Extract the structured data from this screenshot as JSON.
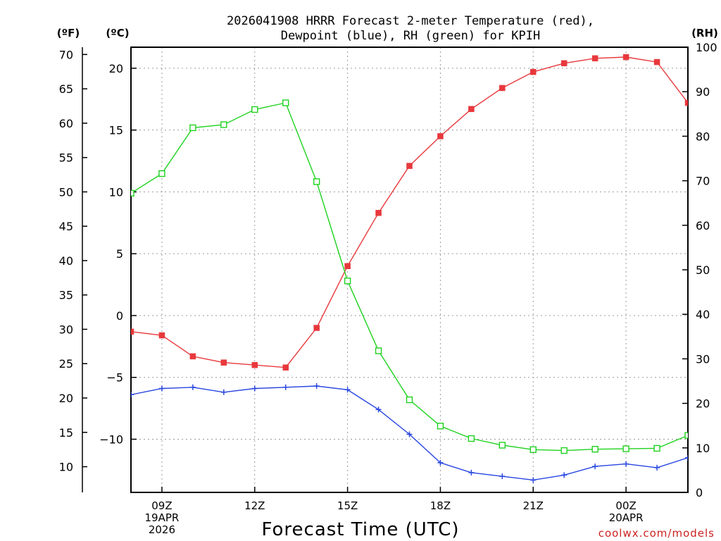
{
  "chart_data": {
    "type": "line",
    "title_lines": [
      "2026041908 HRRR Forecast 2-meter Temperature (red),",
      "Dewpoint (blue), RH (green) for KPIH"
    ],
    "units": {
      "left_outer": "(ºF)",
      "left_inner": "(ºC)",
      "right": "(RH)"
    },
    "xlabel": "Forecast Time (UTC)",
    "credit": "coolwx.com/models",
    "colors": {
      "temperature": "#e8383c",
      "dewpoint": "#2846e0",
      "rh": "#1fd21f",
      "grid": "#9a9a9a",
      "axis": "#000000",
      "credit": "#cc2222"
    },
    "x_hours": [
      8,
      9,
      10,
      11,
      12,
      13,
      14,
      15,
      16,
      17,
      18,
      19,
      20,
      21,
      22,
      23,
      24,
      25,
      26
    ],
    "xlim": [
      8,
      26
    ],
    "x_ticks": [
      {
        "hour": 9,
        "lines": [
          "09Z",
          "19APR",
          "2026"
        ]
      },
      {
        "hour": 12,
        "lines": [
          "12Z"
        ]
      },
      {
        "hour": 15,
        "lines": [
          "15Z"
        ]
      },
      {
        "hour": 18,
        "lines": [
          "18Z"
        ]
      },
      {
        "hour": 21,
        "lines": [
          "21Z"
        ]
      },
      {
        "hour": 24,
        "lines": [
          "00Z",
          "20APR"
        ]
      }
    ],
    "celsius_axis": {
      "range": [
        -14.3,
        21.7
      ],
      "ticks": [
        20,
        15,
        10,
        5,
        0,
        -5,
        -10
      ],
      "tick_labels": [
        "20",
        "15",
        "10",
        "5",
        "0",
        "−5",
        "−10"
      ]
    },
    "fahrenheit_axis": {
      "ticks": [
        70,
        65,
        60,
        55,
        50,
        45,
        40,
        35,
        30,
        25,
        20,
        15,
        10
      ],
      "tick_labels": [
        "70",
        "65",
        "60",
        "55",
        "50",
        "45",
        "40",
        "35",
        "30",
        "25",
        "20",
        "15",
        "10"
      ]
    },
    "rh_axis": {
      "range": [
        0,
        100
      ],
      "ticks": [
        100,
        90,
        80,
        70,
        60,
        50,
        40,
        30,
        20,
        10,
        0
      ],
      "tick_labels": [
        "100",
        "90",
        "80",
        "70",
        "60",
        "50",
        "40",
        "30",
        "20",
        "10",
        "0"
      ]
    },
    "series": [
      {
        "name": "Temperature",
        "unit": "C",
        "marker": "filled-square",
        "color_key": "temperature",
        "values": [
          -1.3,
          -1.6,
          -3.3,
          -3.8,
          -4.0,
          -4.2,
          -1.0,
          4.0,
          8.3,
          12.1,
          14.5,
          16.7,
          18.4,
          19.7,
          20.4,
          20.8,
          20.9,
          20.5,
          17.2
        ]
      },
      {
        "name": "Dewpoint",
        "unit": "C",
        "marker": "plus",
        "color_key": "dewpoint",
        "values": [
          -6.4,
          -5.9,
          -5.8,
          -6.2,
          -5.9,
          -5.8,
          -5.7,
          -6.0,
          -7.6,
          -9.6,
          -11.9,
          -12.7,
          -13.0,
          -13.3,
          -12.9,
          -12.2,
          -12.0,
          -12.3,
          -11.5
        ]
      },
      {
        "name": "RH",
        "unit": "%",
        "marker": "open-square",
        "color_key": "rh",
        "values": [
          67.2,
          71.6,
          81.9,
          82.6,
          86.0,
          87.5,
          69.8,
          47.5,
          31.8,
          20.8,
          14.9,
          12.1,
          10.6,
          9.6,
          9.4,
          9.7,
          9.8,
          9.9,
          12.8
        ]
      }
    ]
  }
}
